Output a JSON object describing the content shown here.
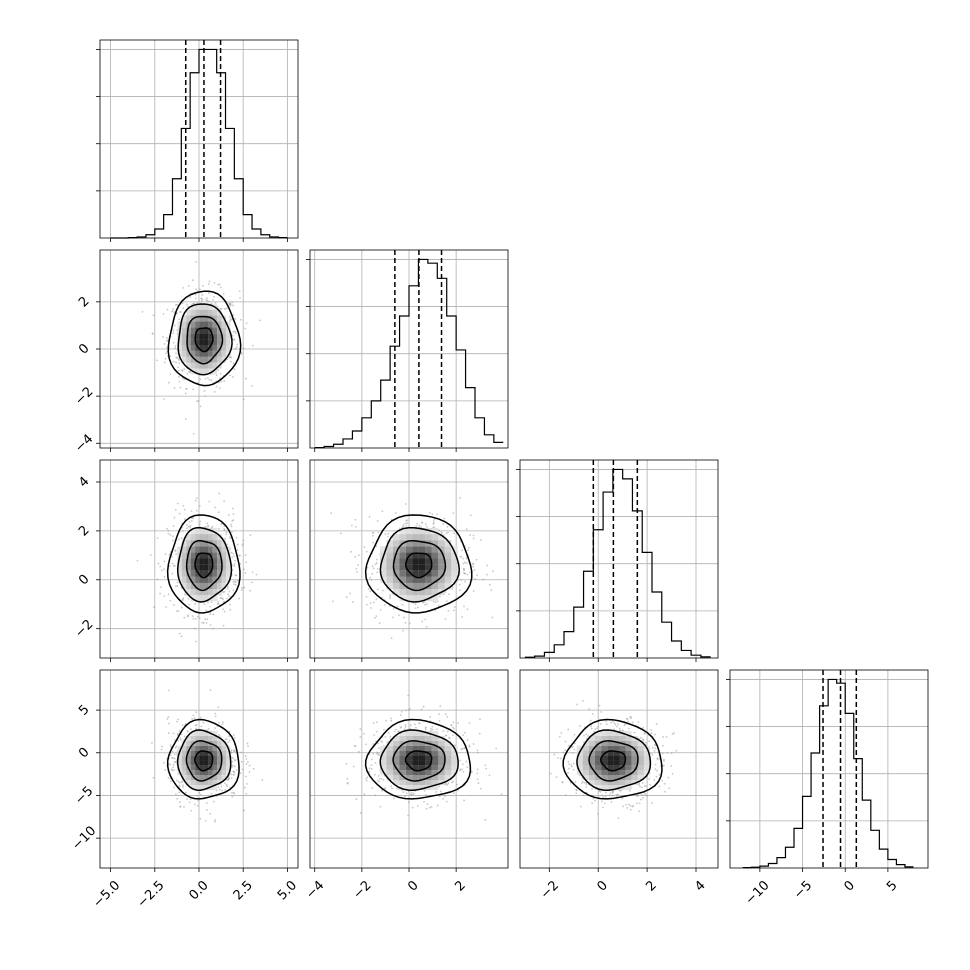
{
  "chart_data": {
    "type": "corner",
    "grid": true,
    "variables": [
      {
        "range": [
          -5.6,
          5.6
        ],
        "ticks": [
          -5.0,
          -2.5,
          0.0,
          2.5,
          5.0
        ],
        "tick_labels": [
          "−5.0",
          "−2.5",
          "0.0",
          "2.5",
          "5.0"
        ],
        "mean": 0.0,
        "std": 1.0,
        "q16": -0.75,
        "q50": 0.28,
        "q84": 1.22
      },
      {
        "range": [
          -4.2,
          4.2
        ],
        "ticks": [
          -4,
          -2,
          0,
          2
        ],
        "tick_labels": [
          "−4",
          "−2",
          "0",
          "2"
        ],
        "mean": 0.4,
        "std": 1.0,
        "q16": -0.6,
        "q50": 0.42,
        "q84": 1.38
      },
      {
        "range": [
          -3.2,
          4.9
        ],
        "ticks": [
          -2,
          0,
          2,
          4
        ],
        "tick_labels": [
          "−2",
          "0",
          "2",
          "4"
        ],
        "mean": 0.6,
        "std": 1.0,
        "q16": -0.2,
        "q50": 0.62,
        "q84": 1.6
      },
      {
        "range": [
          -13.5,
          9.7
        ],
        "ticks": [
          -10,
          -5,
          0,
          5
        ],
        "tick_labels": [
          "−10",
          "−5",
          "0",
          "5"
        ],
        "mean": -0.8,
        "std": 2.3,
        "q16": -2.6,
        "q50": -0.55,
        "q84": 1.3
      }
    ],
    "marginal_histograms": [
      {
        "variable": 0,
        "bin_edges": [
          -5.0,
          -4.5,
          -4.0,
          -3.5,
          -3.0,
          -2.5,
          -2.0,
          -1.5,
          -1.0,
          -0.5,
          0.0,
          0.5,
          1.0,
          1.5,
          2.0,
          2.5,
          3.0,
          3.5,
          4.0,
          4.5,
          5.0
        ],
        "counts": [
          0,
          0,
          2,
          6,
          18,
          50,
          130,
          330,
          610,
          920,
          1050,
          1050,
          920,
          610,
          330,
          130,
          50,
          18,
          6,
          2
        ]
      },
      {
        "variable": 1,
        "bin_edges": [
          -4.0,
          -3.6,
          -3.2,
          -2.8,
          -2.4,
          -2.0,
          -1.6,
          -1.2,
          -0.8,
          -0.4,
          0.0,
          0.4,
          0.8,
          1.2,
          1.6,
          2.0,
          2.4,
          2.8,
          3.2,
          3.6,
          4.0
        ],
        "counts": [
          2,
          8,
          20,
          48,
          90,
          160,
          250,
          360,
          540,
          700,
          860,
          1000,
          980,
          900,
          700,
          520,
          320,
          160,
          70,
          30
        ]
      },
      {
        "variable": 2,
        "bin_edges": [
          -3.0,
          -2.6,
          -2.2,
          -1.8,
          -1.4,
          -1.0,
          -0.6,
          -0.2,
          0.2,
          0.6,
          1.0,
          1.4,
          1.8,
          2.2,
          2.6,
          3.0,
          3.4,
          3.8,
          4.2,
          4.6
        ],
        "counts": [
          4,
          10,
          30,
          70,
          140,
          270,
          460,
          680,
          880,
          1000,
          950,
          780,
          560,
          350,
          190,
          90,
          40,
          15,
          6
        ]
      },
      {
        "variable": 3,
        "bin_edges": [
          -12,
          -11,
          -10,
          -9,
          -8,
          -7,
          -6,
          -5,
          -4,
          -3,
          -2,
          -1,
          0,
          1,
          2,
          3,
          4,
          5,
          6,
          7,
          8
        ],
        "counts": [
          2,
          4,
          10,
          24,
          55,
          110,
          210,
          380,
          610,
          860,
          1000,
          980,
          820,
          580,
          360,
          200,
          100,
          45,
          18,
          6
        ]
      }
    ],
    "joint_panels": [
      {
        "x_variable": 0,
        "y_variable": 1,
        "center": [
          0.28,
          0.42
        ],
        "spread": [
          1.0,
          1.0
        ]
      },
      {
        "x_variable": 0,
        "y_variable": 2,
        "center": [
          0.28,
          0.62
        ],
        "spread": [
          1.0,
          1.0
        ]
      },
      {
        "x_variable": 1,
        "y_variable": 2,
        "center": [
          0.42,
          0.62
        ],
        "spread": [
          1.1,
          1.0
        ]
      },
      {
        "x_variable": 0,
        "y_variable": 3,
        "center": [
          0.28,
          -0.9
        ],
        "spread": [
          1.0,
          2.3
        ]
      },
      {
        "x_variable": 1,
        "y_variable": 3,
        "center": [
          0.42,
          -0.9
        ],
        "spread": [
          1.1,
          2.3
        ]
      },
      {
        "x_variable": 2,
        "y_variable": 3,
        "center": [
          0.62,
          -0.9
        ],
        "spread": [
          1.0,
          2.3
        ]
      }
    ],
    "contour_sigma_levels": [
      0.5,
      1.0,
      1.5,
      2.0
    ]
  }
}
